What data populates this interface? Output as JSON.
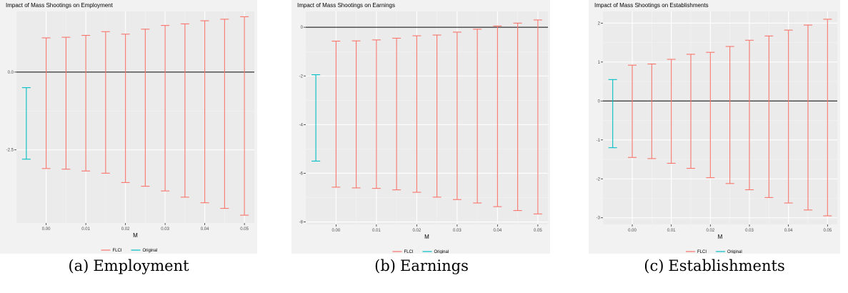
{
  "colors": {
    "panel_background": "#f2f2f2",
    "plot_background": "#ebebeb",
    "grid_major": "#ffffff",
    "grid_minor": "#f4f4f4",
    "flci": "#f8766d",
    "original": "#00bfc4",
    "zero_line": "#000000",
    "tick_text": "#4d4d4d"
  },
  "chart_data": [
    {
      "type": "errorbar",
      "title": "Impact of Mass Shootings on Employment",
      "xlabel": "M",
      "ylabel": "",
      "xlim": [
        -0.0075,
        0.0525
      ],
      "ylim": [
        -4.85,
        1.95
      ],
      "x_ticks": [
        0.0,
        0.01,
        0.02,
        0.03,
        0.04,
        0.05
      ],
      "x_tick_labels": [
        "0.00",
        "0.01",
        "0.02",
        "0.03",
        "0.04",
        "0.05"
      ],
      "y_ticks": [
        -2.5,
        0.0
      ],
      "y_tick_labels": [
        "-2.5",
        "0.0"
      ],
      "hline": 0,
      "grid": true,
      "legend_position": "bottom",
      "legend": [
        {
          "name": "FLCI",
          "color": "#f8766d"
        },
        {
          "name": "Original",
          "color": "#00bfc4"
        }
      ],
      "series": [
        {
          "name": "Original",
          "color": "#00bfc4",
          "points": [
            {
              "x": -0.005,
              "lower": -2.8,
              "upper": -0.5
            }
          ]
        },
        {
          "name": "FLCI",
          "color": "#f8766d",
          "points": [
            {
              "x": 0.0,
              "lower": -3.1,
              "upper": 1.1
            },
            {
              "x": 0.005,
              "lower": -3.12,
              "upper": 1.12
            },
            {
              "x": 0.01,
              "lower": -3.18,
              "upper": 1.18
            },
            {
              "x": 0.015,
              "lower": -3.25,
              "upper": 1.3
            },
            {
              "x": 0.02,
              "lower": -3.55,
              "upper": 1.22
            },
            {
              "x": 0.025,
              "lower": -3.67,
              "upper": 1.38
            },
            {
              "x": 0.03,
              "lower": -3.82,
              "upper": 1.5
            },
            {
              "x": 0.035,
              "lower": -4.02,
              "upper": 1.55
            },
            {
              "x": 0.04,
              "lower": -4.2,
              "upper": 1.65
            },
            {
              "x": 0.045,
              "lower": -4.38,
              "upper": 1.7
            },
            {
              "x": 0.05,
              "lower": -4.6,
              "upper": 1.78
            }
          ]
        }
      ]
    },
    {
      "type": "errorbar",
      "title": "Impact of Mass Shootings on Earnings",
      "xlabel": "M",
      "ylabel": "",
      "xlim": [
        -0.0075,
        0.0525
      ],
      "ylim": [
        -8.1,
        0.65
      ],
      "x_ticks": [
        0.0,
        0.01,
        0.02,
        0.03,
        0.04,
        0.05
      ],
      "x_tick_labels": [
        "0.00",
        "0.01",
        "0.02",
        "0.03",
        "0.04",
        "0.05"
      ],
      "y_ticks": [
        -8,
        -6,
        -4,
        -2,
        0
      ],
      "y_tick_labels": [
        "-8",
        "-6",
        "-4",
        "-2",
        "0"
      ],
      "hline": 0,
      "grid": true,
      "legend_position": "bottom",
      "legend": [
        {
          "name": "FLCI",
          "color": "#f8766d"
        },
        {
          "name": "Original",
          "color": "#00bfc4"
        }
      ],
      "series": [
        {
          "name": "Original",
          "color": "#00bfc4",
          "points": [
            {
              "x": -0.005,
              "lower": -5.5,
              "upper": -1.95
            }
          ]
        },
        {
          "name": "FLCI",
          "color": "#f8766d",
          "points": [
            {
              "x": 0.0,
              "lower": -6.57,
              "upper": -0.57
            },
            {
              "x": 0.005,
              "lower": -6.6,
              "upper": -0.56
            },
            {
              "x": 0.01,
              "lower": -6.62,
              "upper": -0.52
            },
            {
              "x": 0.015,
              "lower": -6.68,
              "upper": -0.45
            },
            {
              "x": 0.02,
              "lower": -6.78,
              "upper": -0.35
            },
            {
              "x": 0.025,
              "lower": -6.98,
              "upper": -0.32
            },
            {
              "x": 0.03,
              "lower": -7.08,
              "upper": -0.2
            },
            {
              "x": 0.035,
              "lower": -7.22,
              "upper": -0.08
            },
            {
              "x": 0.04,
              "lower": -7.37,
              "upper": 0.05
            },
            {
              "x": 0.045,
              "lower": -7.53,
              "upper": 0.17
            },
            {
              "x": 0.05,
              "lower": -7.67,
              "upper": 0.3
            }
          ]
        }
      ]
    },
    {
      "type": "errorbar",
      "title": "Impact of Mass Shootings on Establishments",
      "xlabel": "M",
      "ylabel": "",
      "xlim": [
        -0.0075,
        0.0525
      ],
      "ylim": [
        -3.17,
        2.3
      ],
      "x_ticks": [
        0.0,
        0.01,
        0.02,
        0.03,
        0.04,
        0.05
      ],
      "x_tick_labels": [
        "0.00",
        "0.01",
        "0.02",
        "0.03",
        "0.04",
        "0.05"
      ],
      "y_ticks": [
        -3,
        -2,
        -1,
        0,
        1,
        2
      ],
      "y_tick_labels": [
        "-3",
        "-2",
        "-1",
        "0",
        "1",
        "2"
      ],
      "hline": 0,
      "grid": true,
      "legend_position": "bottom",
      "legend": [
        {
          "name": "FLCI",
          "color": "#f8766d"
        },
        {
          "name": "Original",
          "color": "#00bfc4"
        }
      ],
      "series": [
        {
          "name": "Original",
          "color": "#00bfc4",
          "points": [
            {
              "x": -0.005,
              "lower": -1.2,
              "upper": 0.55
            }
          ]
        },
        {
          "name": "FLCI",
          "color": "#f8766d",
          "points": [
            {
              "x": 0.0,
              "lower": -1.45,
              "upper": 0.92
            },
            {
              "x": 0.005,
              "lower": -1.48,
              "upper": 0.95
            },
            {
              "x": 0.01,
              "lower": -1.6,
              "upper": 1.07
            },
            {
              "x": 0.015,
              "lower": -1.73,
              "upper": 1.2
            },
            {
              "x": 0.02,
              "lower": -1.97,
              "upper": 1.25
            },
            {
              "x": 0.025,
              "lower": -2.12,
              "upper": 1.4
            },
            {
              "x": 0.03,
              "lower": -2.28,
              "upper": 1.56
            },
            {
              "x": 0.035,
              "lower": -2.48,
              "upper": 1.67
            },
            {
              "x": 0.04,
              "lower": -2.62,
              "upper": 1.82
            },
            {
              "x": 0.045,
              "lower": -2.8,
              "upper": 1.95
            },
            {
              "x": 0.05,
              "lower": -2.95,
              "upper": 2.1
            }
          ]
        }
      ]
    }
  ],
  "captions": [
    {
      "label": "(a)",
      "text": "Employment"
    },
    {
      "label": "(b)",
      "text": "Earnings"
    },
    {
      "label": "(c)",
      "text": "Establishments"
    }
  ]
}
